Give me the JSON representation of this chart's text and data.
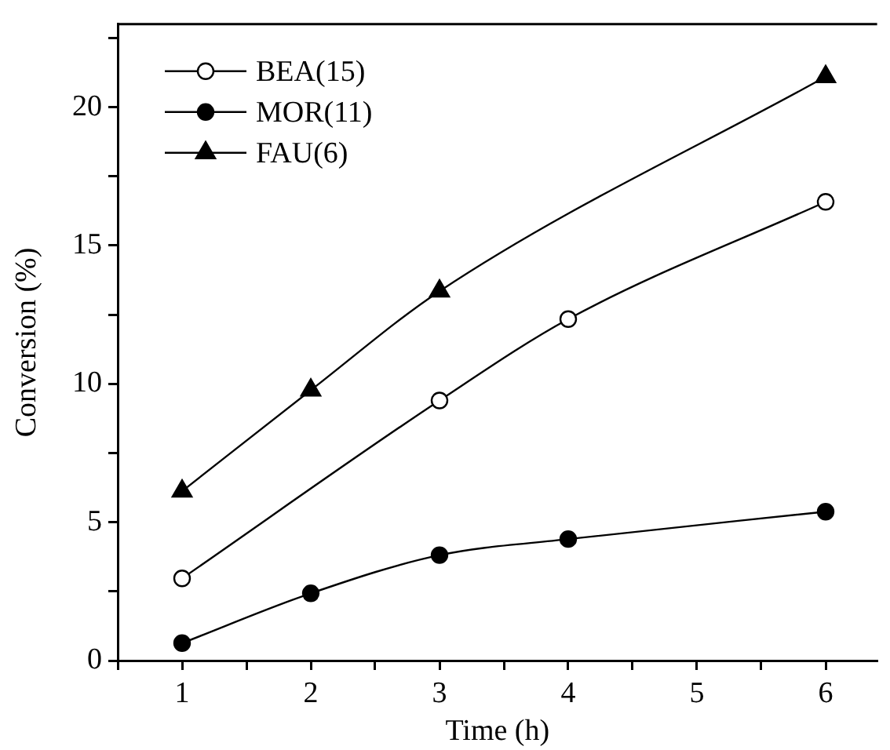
{
  "chart_data": {
    "type": "line",
    "xlabel": "Time (h)",
    "ylabel": "Conversion (%)",
    "xlim": [
      0.5,
      6.4
    ],
    "xticks": [
      {
        "value": 0.5,
        "label": null
      },
      1,
      {
        "value": 1.5,
        "label": null
      },
      2,
      {
        "value": 2.5,
        "label": null
      },
      3,
      {
        "value": 3.5,
        "label": null
      },
      4,
      {
        "value": 4.5,
        "label": null
      },
      5,
      {
        "value": 5.5,
        "label": null
      },
      6
    ],
    "ylim": [
      0,
      23
    ],
    "yticks": [
      0,
      {
        "value": 2.5,
        "label": null
      },
      5,
      {
        "value": 7.5,
        "label": null
      },
      10,
      {
        "value": 12.5,
        "label": null
      },
      15,
      {
        "value": 17.5,
        "label": null
      },
      20,
      {
        "value": 22.5,
        "label": null
      }
    ],
    "grid": false,
    "legend": "top left",
    "line_style": "solid",
    "series": [
      {
        "name": "BEA(15)",
        "color": "#000000",
        "marker": "circle-open",
        "x": [
          1,
          3,
          4,
          6
        ],
        "values": [
          2.97,
          9.4,
          12.34,
          16.58
        ]
      },
      {
        "name": "MOR(11)",
        "color": "#000000",
        "marker": "circle",
        "x": [
          1,
          2,
          3,
          4,
          6
        ],
        "values": [
          0.63,
          2.43,
          3.81,
          4.39,
          5.38
        ]
      },
      {
        "name": "FAU(6)",
        "color": "#000000",
        "marker": "triangle",
        "x": [
          1,
          2,
          3,
          6
        ],
        "values": [
          6.12,
          9.77,
          13.35,
          21.1
        ]
      }
    ]
  }
}
